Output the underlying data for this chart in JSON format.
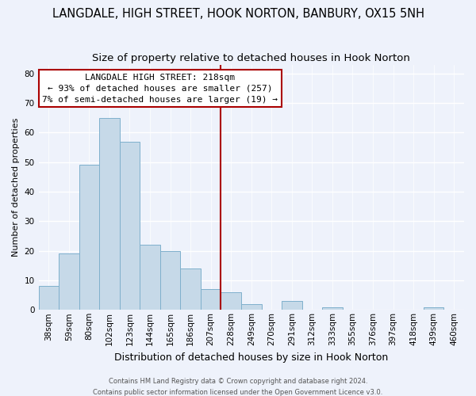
{
  "title": "LANGDALE, HIGH STREET, HOOK NORTON, BANBURY, OX15 5NH",
  "subtitle": "Size of property relative to detached houses in Hook Norton",
  "xlabel": "Distribution of detached houses by size in Hook Norton",
  "ylabel": "Number of detached properties",
  "bar_color": "#c6d9e8",
  "bar_edge_color": "#7fb0cc",
  "bin_labels": [
    "38sqm",
    "59sqm",
    "80sqm",
    "102sqm",
    "123sqm",
    "144sqm",
    "165sqm",
    "186sqm",
    "207sqm",
    "228sqm",
    "249sqm",
    "270sqm",
    "291sqm",
    "312sqm",
    "333sqm",
    "355sqm",
    "376sqm",
    "397sqm",
    "418sqm",
    "439sqm",
    "460sqm"
  ],
  "bar_heights": [
    8,
    19,
    49,
    65,
    57,
    22,
    20,
    14,
    7,
    6,
    2,
    0,
    3,
    0,
    1,
    0,
    0,
    0,
    0,
    1,
    0
  ],
  "vline_color": "#aa0000",
  "annotation_title": "LANGDALE HIGH STREET: 218sqm",
  "annotation_line1": "← 93% of detached houses are smaller (257)",
  "annotation_line2": "7% of semi-detached houses are larger (19) →",
  "annotation_box_color": "#ffffff",
  "annotation_box_edge": "#aa0000",
  "ylim": [
    0,
    83
  ],
  "yticks": [
    0,
    10,
    20,
    30,
    40,
    50,
    60,
    70,
    80
  ],
  "footer1": "Contains HM Land Registry data © Crown copyright and database right 2024.",
  "footer2": "Contains public sector information licensed under the Open Government Licence v3.0.",
  "background_color": "#eef2fb",
  "grid_color": "#ffffff",
  "title_fontsize": 10.5,
  "subtitle_fontsize": 9.5,
  "ylabel_fontsize": 8,
  "xlabel_fontsize": 9,
  "tick_fontsize": 7.5,
  "annotation_fontsize": 8,
  "footer_fontsize": 6
}
